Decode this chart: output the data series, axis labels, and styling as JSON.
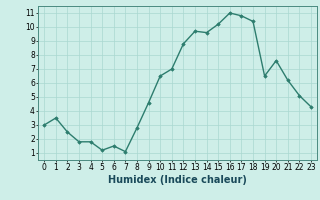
{
  "x": [
    0,
    1,
    2,
    3,
    4,
    5,
    6,
    7,
    8,
    9,
    10,
    11,
    12,
    13,
    14,
    15,
    16,
    17,
    18,
    19,
    20,
    21,
    22,
    23
  ],
  "y": [
    3.0,
    3.5,
    2.5,
    1.8,
    1.8,
    1.2,
    1.5,
    1.1,
    2.8,
    4.6,
    6.5,
    7.0,
    8.8,
    9.7,
    9.6,
    10.2,
    11.0,
    10.8,
    10.4,
    6.5,
    7.6,
    6.2,
    5.1,
    4.3
  ],
  "line_color": "#2d7d6e",
  "marker": "D",
  "marker_size": 1.8,
  "line_width": 1.0,
  "xlabel": "Humidex (Indice chaleur)",
  "xlabel_fontsize": 7,
  "xlim": [
    -0.5,
    23.5
  ],
  "ylim": [
    0.5,
    11.5
  ],
  "yticks": [
    1,
    2,
    3,
    4,
    5,
    6,
    7,
    8,
    9,
    10,
    11
  ],
  "xticks": [
    0,
    1,
    2,
    3,
    4,
    5,
    6,
    7,
    8,
    9,
    10,
    11,
    12,
    13,
    14,
    15,
    16,
    17,
    18,
    19,
    20,
    21,
    22,
    23
  ],
  "bg_color": "#ceeee8",
  "grid_color": "#aad8d0",
  "tick_fontsize": 5.5,
  "spine_color": "#4a8a80",
  "xlabel_color": "#1a4a5a",
  "xlabel_fontweight": "bold"
}
